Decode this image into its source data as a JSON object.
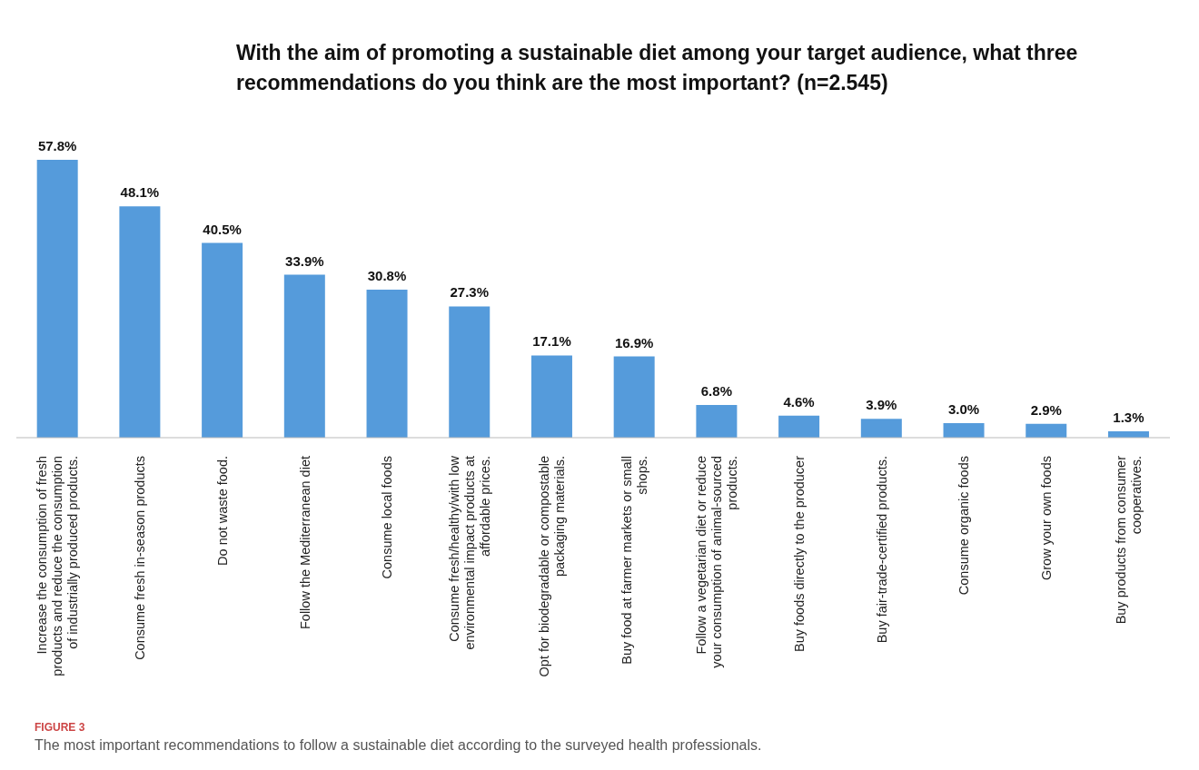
{
  "chart_data": {
    "type": "bar",
    "title": "With the aim of promoting a sustainable diet among your target audience, what three recommendations do you think are the most important? (n=2.545)",
    "categories": [
      "Increase the consumption of fresh products and reduce the consumption of industrially produced products.",
      "Consume fresh in-season products",
      "Do not waste food.",
      "Follow the Mediterranean diet",
      "Consume local foods",
      "Consume fresh/healthy/with low environmental impact products at affordable prices.",
      "Opt for biodegradable or compostable packaging materials.",
      "Buy food at farmer markets or small shops.",
      "Follow a vegetarian diet or reduce your consumption of animal-sourced products.",
      "Buy foods directly to the producer",
      "Buy fair-trade-certified products.",
      "Consume organic foods",
      "Grow your own foods",
      "Buy products from consumer cooperatives."
    ],
    "values": [
      57.8,
      48.1,
      40.5,
      33.9,
      30.8,
      27.3,
      17.1,
      16.9,
      6.8,
      4.6,
      3.9,
      3.0,
      2.9,
      1.3
    ],
    "value_labels": [
      "57.8%",
      "48.1%",
      "40.5%",
      "33.9%",
      "30.8%",
      "27.3%",
      "17.1%",
      "16.9%",
      "6.8%",
      "4.6%",
      "3.9%",
      "3.0%",
      "2.9%",
      "1.3%"
    ],
    "color": "#559bdb",
    "annotations": [
      "FIGURE 3",
      "The most important recommendations to follow a sustainable diet according to the surveyed health professionals."
    ]
  }
}
